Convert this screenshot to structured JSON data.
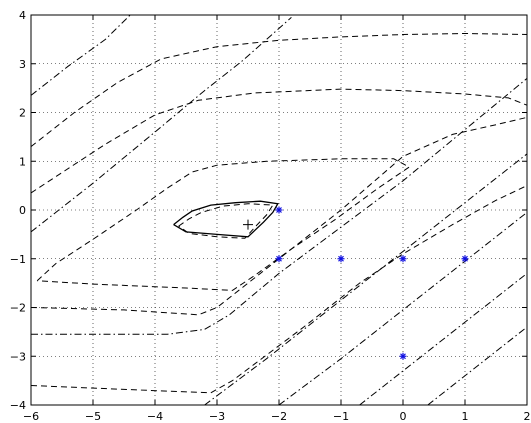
{
  "chart_data": {
    "type": "line",
    "title": "",
    "xlabel": "",
    "ylabel": "",
    "xlim": [
      -6,
      2
    ],
    "ylim": [
      -4,
      4
    ],
    "x_ticks": [
      -6,
      -5,
      -4,
      -3,
      -2,
      -1,
      0,
      1,
      2
    ],
    "y_ticks": [
      -4,
      -3,
      -2,
      -1,
      0,
      1,
      2,
      3,
      4
    ],
    "grid": true,
    "series": [
      {
        "style": "solid",
        "color": "#000000",
        "points": [
          [
            -3.7,
            -0.3
          ],
          [
            -3.55,
            -0.15
          ],
          [
            -3.4,
            -0.02
          ],
          [
            -3.1,
            0.1
          ],
          [
            -2.7,
            0.15
          ],
          [
            -2.3,
            0.18
          ],
          [
            -2.02,
            0.13
          ],
          [
            -2.1,
            -0.05
          ],
          [
            -2.25,
            -0.25
          ],
          [
            -2.5,
            -0.55
          ],
          [
            -3.0,
            -0.5
          ],
          [
            -3.5,
            -0.45
          ],
          [
            -3.7,
            -0.3
          ]
        ]
      },
      {
        "style": "dashed",
        "color": "#000000",
        "points": [
          [
            -3.62,
            -0.33
          ],
          [
            -3.45,
            -0.18
          ],
          [
            -3.25,
            -0.05
          ],
          [
            -2.9,
            0.08
          ],
          [
            -2.5,
            0.13
          ],
          [
            -2.1,
            0.1
          ],
          [
            -2.2,
            -0.1
          ],
          [
            -2.35,
            -0.3
          ],
          [
            -2.55,
            -0.58
          ],
          [
            -3.0,
            -0.55
          ],
          [
            -3.45,
            -0.48
          ],
          [
            -3.62,
            -0.33
          ]
        ]
      },
      {
        "style": "dashed",
        "color": "#000000",
        "points": [
          [
            -5.9,
            -1.45
          ],
          [
            -5.6,
            -1.1
          ],
          [
            -5.0,
            -0.6
          ],
          [
            -4.3,
            0.0
          ],
          [
            -3.8,
            0.45
          ],
          [
            -3.4,
            0.78
          ],
          [
            -3.0,
            0.92
          ],
          [
            -2.2,
            1.0
          ],
          [
            -1.0,
            1.05
          ],
          [
            -0.15,
            1.05
          ],
          [
            0.1,
            0.88
          ],
          [
            -0.4,
            0.45
          ],
          [
            -1.1,
            -0.2
          ],
          [
            -1.8,
            -0.8
          ],
          [
            -2.4,
            -1.35
          ],
          [
            -2.75,
            -1.65
          ],
          [
            -3.5,
            -1.6
          ],
          [
            -5.0,
            -1.52
          ],
          [
            -5.9,
            -1.45
          ]
        ]
      },
      {
        "style": "dashed",
        "color": "#000000",
        "points": [
          [
            -6.0,
            -2.0
          ],
          [
            -4.5,
            -2.05
          ],
          [
            -3.3,
            -2.15
          ],
          [
            -3.0,
            -2.0
          ],
          [
            -2.0,
            -1.0
          ],
          [
            -1.0,
            0.0
          ],
          [
            -0.5,
            0.55
          ],
          [
            0.0,
            1.1
          ],
          [
            0.8,
            1.55
          ],
          [
            1.5,
            1.75
          ],
          [
            2.0,
            1.9
          ]
        ]
      },
      {
        "style": "dashed",
        "color": "#000000",
        "points": [
          [
            -6.0,
            -3.6
          ],
          [
            -4.5,
            -3.68
          ],
          [
            -3.1,
            -3.75
          ],
          [
            -2.75,
            -3.5
          ],
          [
            -1.6,
            -2.4
          ],
          [
            -0.7,
            -1.5
          ],
          [
            0.0,
            -0.9
          ],
          [
            0.8,
            -0.3
          ],
          [
            1.5,
            0.2
          ],
          [
            2.0,
            0.5
          ]
        ]
      },
      {
        "style": "dashed",
        "color": "#000000",
        "points": [
          [
            -6.0,
            0.35
          ],
          [
            -4.8,
            1.35
          ],
          [
            -4.0,
            1.95
          ],
          [
            -3.3,
            2.25
          ],
          [
            -2.4,
            2.4
          ],
          [
            -1.0,
            2.48
          ],
          [
            0.0,
            2.45
          ],
          [
            1.0,
            2.38
          ],
          [
            1.7,
            2.3
          ],
          [
            2.0,
            2.15
          ]
        ]
      },
      {
        "style": "dashed",
        "color": "#000000",
        "points": [
          [
            -6.0,
            1.3
          ],
          [
            -5.3,
            2.0
          ],
          [
            -4.6,
            2.62
          ],
          [
            -3.9,
            3.1
          ],
          [
            -3.0,
            3.35
          ],
          [
            -2.0,
            3.48
          ],
          [
            -1.0,
            3.55
          ],
          [
            0.0,
            3.6
          ],
          [
            1.0,
            3.62
          ],
          [
            2.0,
            3.6
          ]
        ]
      },
      {
        "style": "dashdot",
        "color": "#000000",
        "points": [
          [
            -6.0,
            2.35
          ],
          [
            -5.4,
            2.95
          ],
          [
            -4.8,
            3.5
          ],
          [
            -4.4,
            4.0
          ]
        ]
      },
      {
        "style": "dashdot",
        "color": "#000000",
        "points": [
          [
            -6.0,
            -0.45
          ],
          [
            -5.0,
            0.55
          ],
          [
            -4.0,
            1.6
          ],
          [
            -3.2,
            2.45
          ],
          [
            -2.6,
            3.05
          ],
          [
            -1.8,
            3.95
          ]
        ]
      },
      {
        "style": "dashdot",
        "color": "#000000",
        "points": [
          [
            -6.0,
            -2.55
          ],
          [
            -3.8,
            -2.55
          ],
          [
            -3.2,
            -2.45
          ],
          [
            -2.8,
            -2.15
          ],
          [
            -2.0,
            -1.3
          ],
          [
            -1.0,
            -0.35
          ],
          [
            0.0,
            0.6
          ],
          [
            1.0,
            1.65
          ],
          [
            2.0,
            2.7
          ]
        ]
      },
      {
        "style": "dashdot",
        "color": "#000000",
        "points": [
          [
            -3.2,
            -4.0
          ],
          [
            -2.2,
            -3.05
          ],
          [
            -1.2,
            -2.05
          ],
          [
            -0.2,
            -1.05
          ],
          [
            0.8,
            -0.05
          ],
          [
            2.0,
            1.15
          ]
        ]
      },
      {
        "style": "dashdot",
        "color": "#000000",
        "points": [
          [
            -2.0,
            -4.0
          ],
          [
            -1.0,
            -3.05
          ],
          [
            0.0,
            -2.05
          ],
          [
            1.0,
            -1.05
          ],
          [
            2.0,
            -0.05
          ]
        ]
      },
      {
        "style": "dashdot",
        "color": "#000000",
        "points": [
          [
            -0.7,
            -4.0
          ],
          [
            0.3,
            -3.0
          ],
          [
            1.2,
            -2.1
          ],
          [
            2.0,
            -1.3
          ]
        ]
      },
      {
        "style": "dashdot",
        "color": "#000000",
        "points": [
          [
            0.4,
            -4.0
          ],
          [
            1.2,
            -3.2
          ],
          [
            2.0,
            -2.4
          ]
        ]
      }
    ],
    "markers": {
      "star": {
        "color": "#1010e0",
        "points": [
          [
            -2,
            0
          ],
          [
            -2,
            -1
          ],
          [
            -1,
            -1
          ],
          [
            0,
            -1
          ],
          [
            1,
            -1
          ],
          [
            0,
            -3
          ]
        ]
      },
      "plus": {
        "color": "#000000",
        "points": [
          [
            -2.5,
            -0.3
          ]
        ]
      }
    }
  }
}
